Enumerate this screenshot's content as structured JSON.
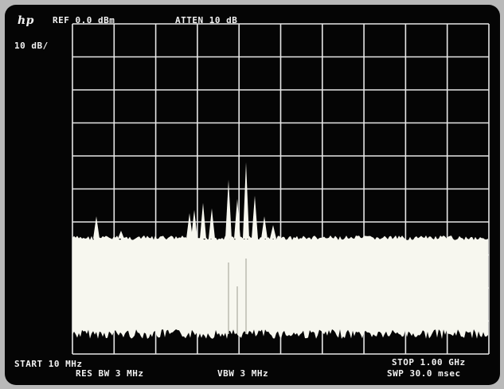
{
  "header": {
    "brand": "hp",
    "reference": "REF 0.0 dBm",
    "attenuation": "ATTEN 10 dB",
    "scale": "10 dB/"
  },
  "footer": {
    "start": "START 10 MHz",
    "resolution_bandwidth": "RES BW 3 MHz",
    "video_bandwidth": "VBW 3 MHz",
    "stop": "STOP 1.00 GHz",
    "sweep": "SWP 30.0 msec"
  }
}
